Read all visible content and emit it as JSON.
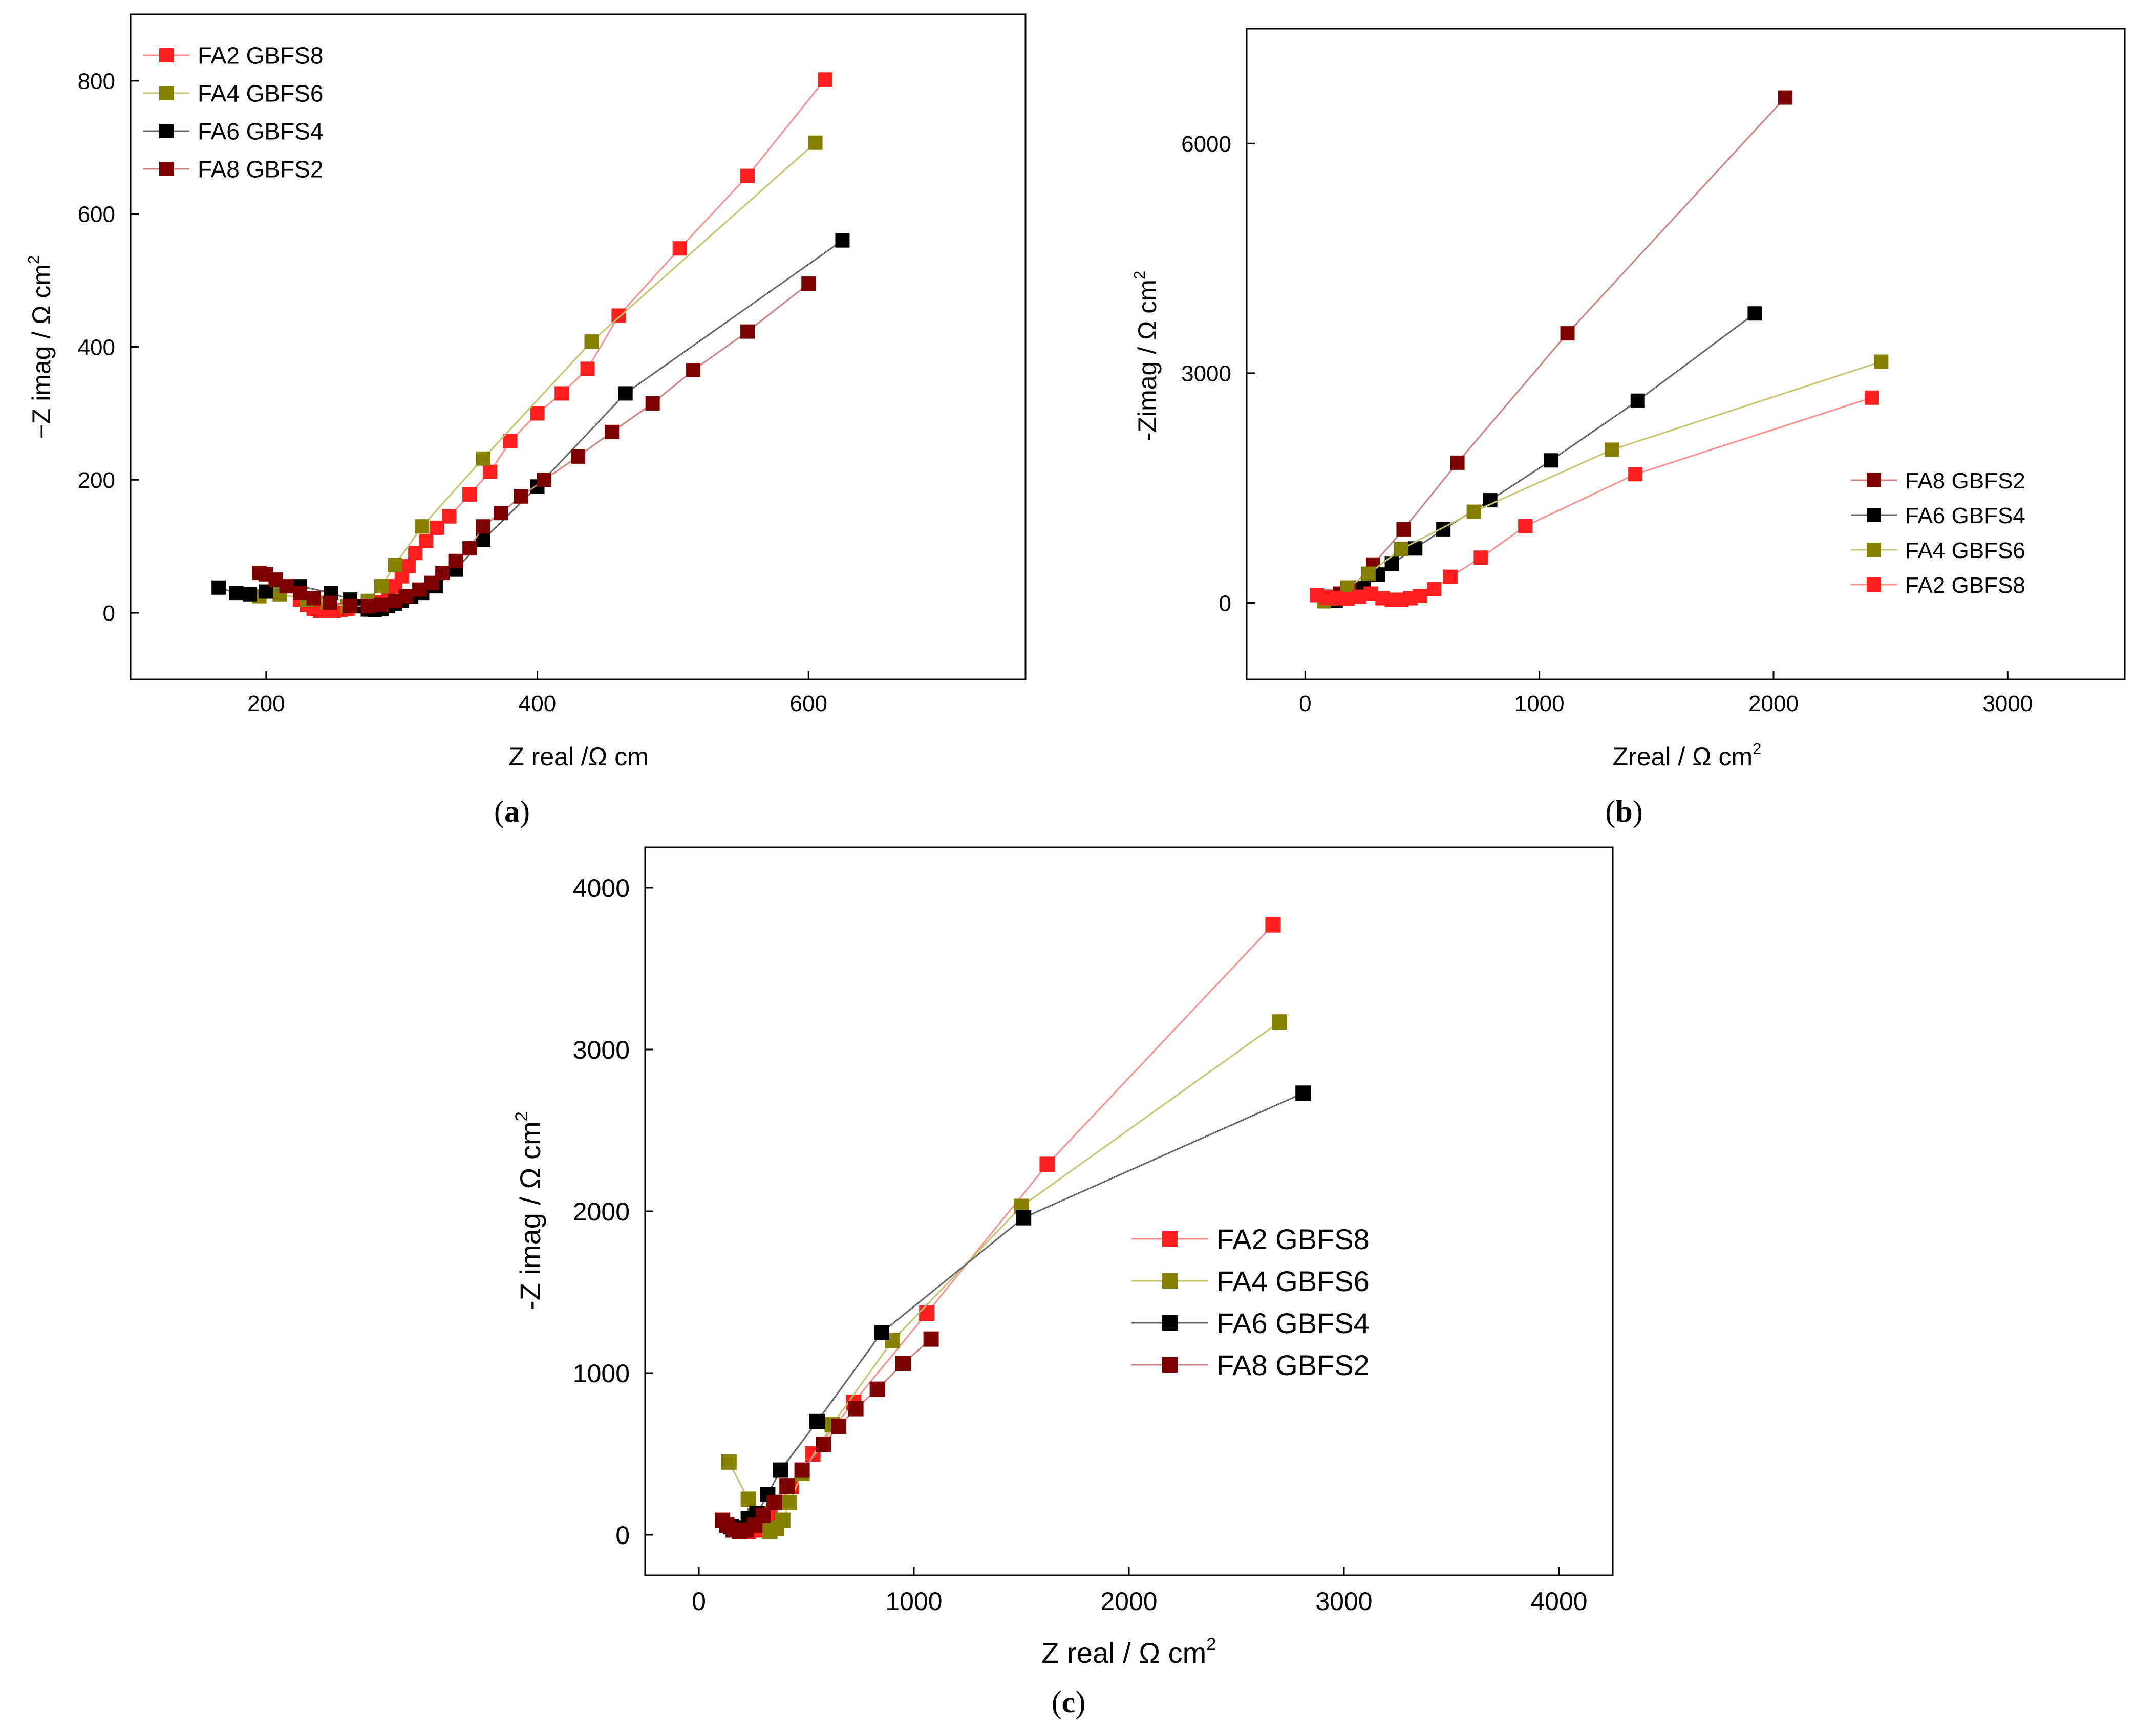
{
  "figure": {
    "panel_labels": [
      "(a)",
      "(b)",
      "(c)"
    ]
  },
  "colors": {
    "FA2 GBFS8": "#ff1f1f",
    "FA4 GBFS6": "#858000",
    "FA6 GBFS4": "#000000",
    "FA8 GBFS2": "#7d0000"
  },
  "line_colors": {
    "FA2 GBFS8": "#ff8f8f",
    "FA4 GBFS6": "#c4c46c",
    "FA6 GBFS4": "#666666",
    "FA8 GBFS2": "#d08080"
  },
  "chart_data": [
    {
      "id": "a",
      "type": "scatter",
      "title": "",
      "panel_label": "(a)",
      "xlabel": "Z real /Ω cm",
      "xlabel_sup": "",
      "ylabel": "−Z imag / Ω cm",
      "ylabel_sup": "2",
      "xlim": [
        100,
        760
      ],
      "ylim": [
        -100,
        900
      ],
      "xticks": [
        200,
        400,
        600
      ],
      "yticks": [
        0,
        200,
        400,
        600,
        800
      ],
      "legend_position": "top-left",
      "grid": false,
      "series": [
        {
          "name": "FA2 GBFS8",
          "x": [
            225,
            230,
            235,
            240,
            245,
            250,
            255,
            260,
            270,
            280,
            290,
            295,
            300,
            305,
            310,
            318,
            326,
            335,
            350,
            365,
            380,
            400,
            418,
            437,
            460,
            505,
            555,
            612
          ],
          "y": [
            20,
            12,
            6,
            3,
            3,
            3,
            4,
            6,
            10,
            16,
            28,
            40,
            55,
            70,
            90,
            108,
            128,
            145,
            178,
            212,
            258,
            300,
            330,
            367,
            447,
            548,
            657,
            802
          ]
        },
        {
          "name": "FA4 GBFS6",
          "x": [
            195,
            210,
            230,
            245,
            260,
            275,
            285,
            295,
            315,
            360,
            440,
            605
          ],
          "y": [
            25,
            28,
            20,
            15,
            10,
            18,
            40,
            72,
            130,
            232,
            408,
            707
          ]
        },
        {
          "name": "FA6 GBFS4",
          "x": [
            165,
            178,
            188,
            200,
            225,
            248,
            262,
            270,
            275,
            280,
            285,
            290,
            295,
            300,
            307,
            315,
            325,
            340,
            360,
            400,
            465,
            625
          ],
          "y": [
            38,
            30,
            28,
            32,
            40,
            30,
            20,
            10,
            5,
            4,
            6,
            10,
            14,
            18,
            24,
            30,
            40,
            65,
            110,
            190,
            330,
            560
          ]
        },
        {
          "name": "FA8 GBFS2",
          "x": [
            195,
            200,
            207,
            215,
            225,
            235,
            247,
            262,
            275,
            285,
            295,
            303,
            313,
            322,
            330,
            340,
            350,
            360,
            373,
            388,
            405,
            430,
            455,
            485,
            515,
            555,
            600
          ],
          "y": [
            60,
            58,
            50,
            40,
            30,
            22,
            15,
            10,
            10,
            12,
            18,
            25,
            35,
            45,
            60,
            78,
            97,
            130,
            150,
            175,
            200,
            235,
            272,
            315,
            365,
            423,
            495
          ]
        }
      ]
    },
    {
      "id": "b",
      "type": "scatter",
      "title": "",
      "panel_label": "(b)",
      "xlabel": "Zreal / Ω cm",
      "xlabel_sup": "2",
      "ylabel": "-Zimag / Ω cm",
      "ylabel_sup": "2",
      "xlim": [
        -250,
        3500
      ],
      "ylim": [
        -1000,
        7500
      ],
      "xticks": [
        0,
        1000,
        2000,
        3000
      ],
      "yticks": [
        0,
        3000,
        6000
      ],
      "legend_position": "lower-right",
      "grid": false,
      "series": [
        {
          "name": "FA8 GBFS2",
          "x": [
            100,
            150,
            200,
            290,
            420,
            650,
            1120,
            2050
          ],
          "y": [
            80,
            120,
            200,
            500,
            960,
            1830,
            3520,
            6600
          ]
        },
        {
          "name": "FA6 GBFS4",
          "x": [
            130,
            200,
            250,
            310,
            370,
            470,
            590,
            790,
            1050,
            1420,
            1920
          ],
          "y": [
            30,
            80,
            190,
            370,
            510,
            710,
            960,
            1340,
            1860,
            2640,
            3780
          ]
        },
        {
          "name": "FA4 GBFS6",
          "x": [
            80,
            110,
            180,
            270,
            410,
            720,
            1310,
            2460
          ],
          "y": [
            20,
            50,
            200,
            380,
            700,
            1190,
            2000,
            3150
          ]
        },
        {
          "name": "FA2 GBFS8",
          "x": [
            50,
            90,
            130,
            180,
            230,
            280,
            330,
            370,
            410,
            450,
            490,
            550,
            620,
            750,
            940,
            1410,
            2420
          ],
          "y": [
            100,
            70,
            60,
            50,
            80,
            120,
            60,
            40,
            40,
            60,
            90,
            180,
            340,
            590,
            1000,
            1680,
            2680
          ]
        }
      ]
    },
    {
      "id": "c",
      "type": "scatter",
      "title": "",
      "panel_label": "(c)",
      "xlabel": "Z real / Ω cm",
      "xlabel_sup": "2",
      "ylabel": "-Z imag / Ω cm",
      "ylabel_sup": "2",
      "xlim": [
        -250,
        4250
      ],
      "ylim": [
        -250,
        4250
      ],
      "xticks": [
        0,
        1000,
        2000,
        3000,
        4000
      ],
      "yticks": [
        0,
        1000,
        2000,
        3000,
        4000
      ],
      "legend_position": "center-right",
      "grid": false,
      "series": [
        {
          "name": "FA2 GBFS8",
          "x": [
            200,
            230,
            260,
            300,
            330,
            380,
            430,
            530,
            720,
            1060,
            1620,
            2670
          ],
          "y": [
            40,
            20,
            30,
            70,
            130,
            200,
            300,
            500,
            820,
            1370,
            2290,
            3770
          ]
        },
        {
          "name": "FA4 GBFS6",
          "x": [
            140,
            230,
            260,
            290,
            330,
            360,
            390,
            420,
            480,
            620,
            900,
            1500,
            2700
          ],
          "y": [
            450,
            220,
            120,
            60,
            20,
            40,
            90,
            200,
            380,
            680,
            1200,
            2030,
            3170
          ]
        },
        {
          "name": "FA6 GBFS4",
          "x": [
            130,
            150,
            180,
            230,
            270,
            320,
            380,
            550,
            850,
            1510,
            2810
          ],
          "y": [
            60,
            50,
            40,
            100,
            130,
            250,
            400,
            700,
            1250,
            1960,
            2730
          ]
        },
        {
          "name": "FA8 GBFS2",
          "x": [
            110,
            130,
            160,
            190,
            220,
            260,
            300,
            350,
            410,
            480,
            580,
            650,
            730,
            830,
            950,
            1080
          ],
          "y": [
            90,
            60,
            30,
            20,
            30,
            60,
            120,
            200,
            300,
            400,
            560,
            670,
            780,
            900,
            1060,
            1210
          ]
        }
      ]
    }
  ]
}
